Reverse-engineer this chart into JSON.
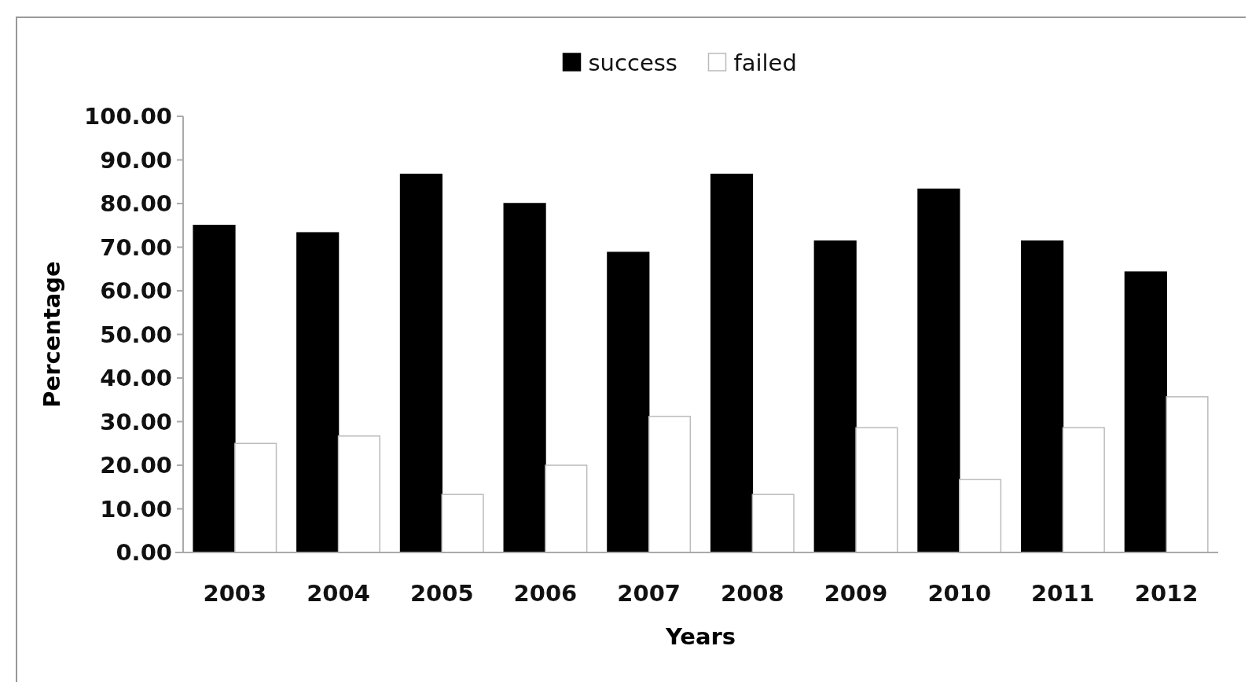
{
  "chart_data": {
    "type": "bar",
    "xlabel": "Years",
    "ylabel": "Percentage",
    "categories": [
      "2003",
      "2004",
      "2005",
      "2006",
      "2007",
      "2008",
      "2009",
      "2010",
      "2011",
      "2012"
    ],
    "series": [
      {
        "name": "success",
        "color": "#000000",
        "values": [
          75.0,
          73.3,
          86.7,
          80.0,
          68.8,
          86.7,
          71.4,
          83.3,
          71.4,
          64.3
        ]
      },
      {
        "name": "failed",
        "color": "#ffffff",
        "values": [
          25.0,
          26.7,
          13.3,
          20.0,
          31.2,
          13.3,
          28.6,
          16.7,
          28.6,
          35.7
        ]
      }
    ],
    "ylim": [
      0,
      100
    ],
    "yticks": [
      {
        "value": 0,
        "label": "0.00"
      },
      {
        "value": 10,
        "label": "10.00"
      },
      {
        "value": 20,
        "label": "20.00"
      },
      {
        "value": 30,
        "label": "30.00"
      },
      {
        "value": 40,
        "label": "40.00"
      },
      {
        "value": 50,
        "label": "50.00"
      },
      {
        "value": 60,
        "label": "60.00"
      },
      {
        "value": 70,
        "label": "70.00"
      },
      {
        "value": 80,
        "label": "80.00"
      },
      {
        "value": 90,
        "label": "90.00"
      },
      {
        "value": 100,
        "label": "100.00"
      }
    ],
    "legend": "top"
  }
}
